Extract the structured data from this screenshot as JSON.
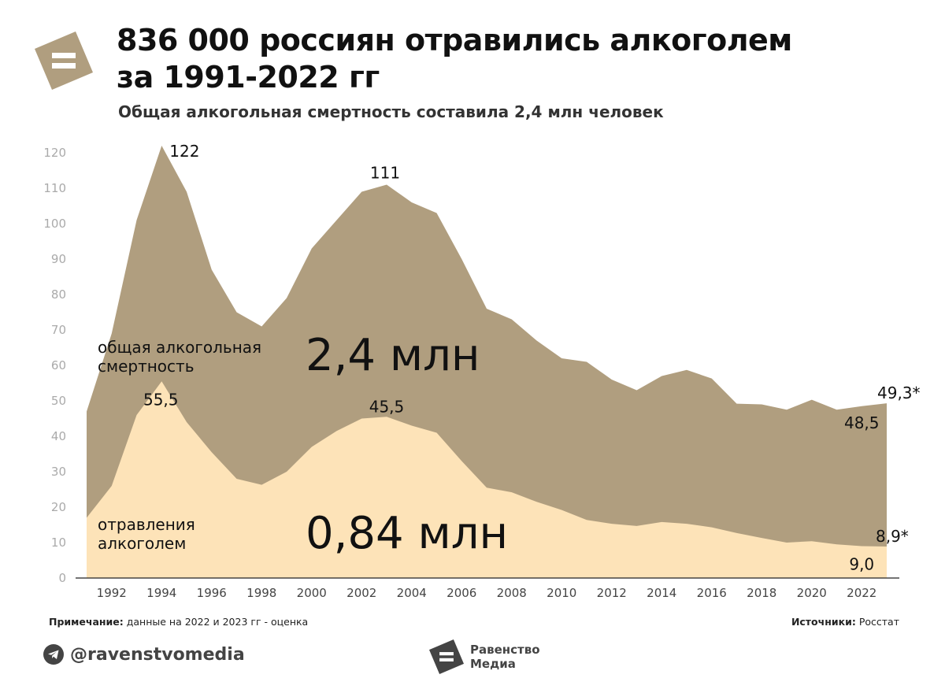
{
  "header": {
    "title_line1": "836 000 россиян отравились алкоголем",
    "title_line2": "за 1991-2022 гг",
    "subtitle": "Общая алкогольная смертность составила 2,4 млн человек"
  },
  "chart_data": {
    "type": "area",
    "years": [
      1991,
      1992,
      1993,
      1994,
      1995,
      1996,
      1997,
      1998,
      1999,
      2000,
      2001,
      2002,
      2003,
      2004,
      2005,
      2006,
      2007,
      2008,
      2009,
      2010,
      2011,
      2012,
      2013,
      2014,
      2015,
      2016,
      2017,
      2018,
      2019,
      2020,
      2021,
      2022,
      2023
    ],
    "series": [
      {
        "name": "общая алкогольная смертность",
        "color": "#b09e7f",
        "values": [
          47,
          69,
          101,
          122,
          109,
          87,
          75,
          71,
          79,
          93,
          101,
          109,
          111,
          106,
          103,
          90,
          76,
          73,
          67,
          62,
          61,
          56,
          53,
          57,
          58.7,
          56.3,
          49.2,
          49,
          47.5,
          50.3,
          47.5,
          48.5,
          49.3
        ]
      },
      {
        "name": "отравления алкоголем",
        "color": "#fde3b8",
        "values": [
          17,
          26,
          46,
          55.5,
          44,
          35.5,
          28,
          26.3,
          30,
          37,
          41.5,
          45,
          45.5,
          43,
          41,
          33,
          25.5,
          24.2,
          21.5,
          19.2,
          16.4,
          15.3,
          14.7,
          15.8,
          15.3,
          14.3,
          12.7,
          11.3,
          10,
          10.4,
          9.5,
          9.0,
          8.9
        ]
      }
    ],
    "ylim": [
      0,
      125
    ],
    "yticks": [
      "0",
      "10",
      "20",
      "30",
      "40",
      "50",
      "60",
      "70",
      "80",
      "90",
      "100",
      "110",
      "120"
    ],
    "xticks": [
      "1992",
      "1994",
      "1996",
      "1998",
      "2000",
      "2002",
      "2004",
      "2006",
      "2008",
      "2010",
      "2012",
      "2014",
      "2016",
      "2018",
      "2020",
      "2022"
    ],
    "annotations": {
      "peak_total_1994": "122",
      "peak_total_2003": "111",
      "total_2022": "48,5",
      "total_2023": "49,3*",
      "peak_poison_1994": "55,5",
      "peak_poison_2003": "45,5",
      "poison_2022": "9,0",
      "poison_2023": "8,9*"
    },
    "area_labels": {
      "total_line1": "общая алкогольная",
      "total_line2": "смертность",
      "poison_line1": "отравления",
      "poison_line2": "алкоголем",
      "total_sum": "2,4 млн",
      "poison_sum": "0,84 млн"
    }
  },
  "footer": {
    "note_label": "Примечание:",
    "note_text": " данные на 2022 и 2023 гг - оценка",
    "source_label": "Источники:",
    "source_text": " Росстат",
    "handle": "@ravenstvomedia",
    "brand_line1": "Равенство",
    "brand_line2": "Медиа"
  },
  "colors": {
    "total_area": "#b09e7f",
    "poison_area": "#fde3b8",
    "logo": "#b09e7f"
  }
}
